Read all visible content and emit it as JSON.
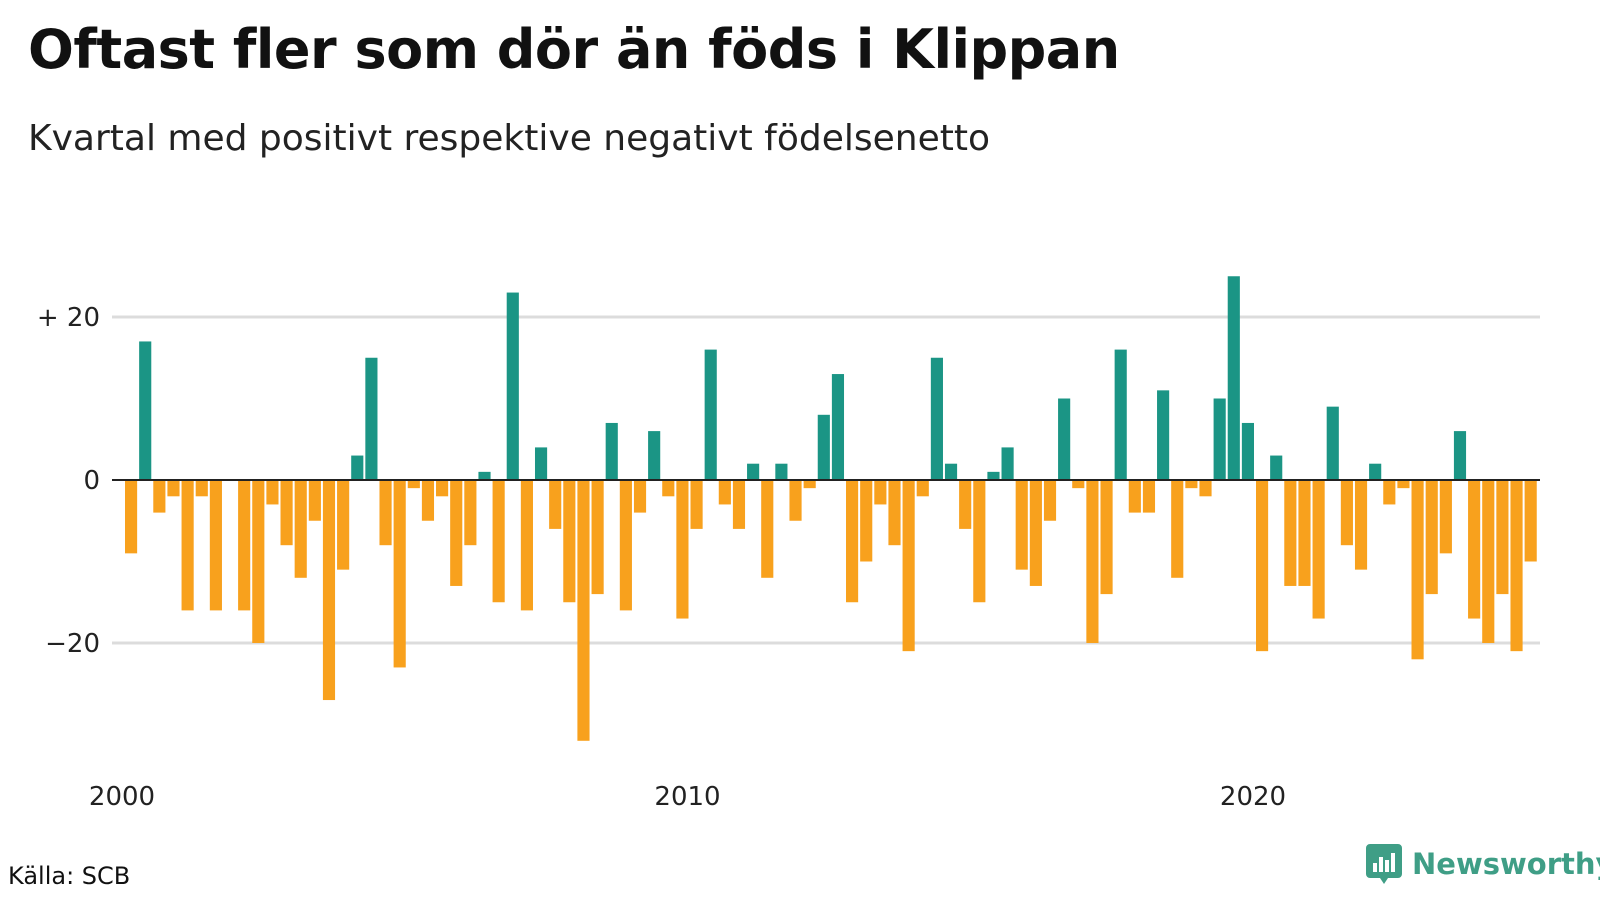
{
  "title": "Oftast fler som dör än föds i Klippan",
  "subtitle": "Kvartal med positivt respektive negativt födelsenetto",
  "source": "Källa: SCB",
  "brand": {
    "name": "Newsworthy",
    "icon": "bar-chart-icon",
    "color": "#3f9e86"
  },
  "colors": {
    "positive": "#1b9585",
    "negative": "#f8a11d",
    "grid": "#dcdcdc",
    "zero_line": "#222222"
  },
  "chart_data": {
    "type": "bar",
    "title": "Oftast fler som dör än föds i Klippan",
    "subtitle": "Kvartal med positivt respektive negativt födelsenetto",
    "xlabel": "",
    "ylabel": "",
    "ylim": [
      -33,
      28
    ],
    "grid": true,
    "y_ticks": [
      {
        "value": 20,
        "label": "+ 20"
      },
      {
        "value": 0,
        "label": "0"
      },
      {
        "value": -20,
        "label": "−20"
      }
    ],
    "x_ticks": [
      {
        "value": 2000,
        "label": "2000"
      },
      {
        "value": 2010,
        "label": "2010"
      },
      {
        "value": 2020,
        "label": "2020"
      }
    ],
    "x_start_year": 2000,
    "period": "quarter",
    "values": [
      -9,
      17,
      -4,
      -2,
      -16,
      -2,
      -16,
      0,
      -16,
      -20,
      -3,
      -8,
      -12,
      -5,
      -27,
      -11,
      3,
      15,
      -8,
      -23,
      -1,
      -5,
      -2,
      -13,
      -8,
      1,
      -15,
      23,
      -16,
      4,
      -6,
      -15,
      -32,
      -14,
      7,
      -16,
      -4,
      6,
      -2,
      -17,
      -6,
      16,
      -3,
      -6,
      2,
      -12,
      2,
      -5,
      -1,
      8,
      13,
      -15,
      -10,
      -3,
      -8,
      -21,
      -2,
      15,
      2,
      -6,
      -15,
      1,
      4,
      -11,
      -13,
      -5,
      10,
      -1,
      -20,
      -14,
      16,
      -4,
      -4,
      11,
      -12,
      -1,
      -2,
      10,
      25,
      7,
      -21,
      3,
      -13,
      -13,
      -17,
      9,
      -8,
      -11,
      2,
      -3,
      -1,
      -22,
      -14,
      -9,
      6,
      -17,
      -20,
      -14,
      -21,
      -10
    ]
  }
}
